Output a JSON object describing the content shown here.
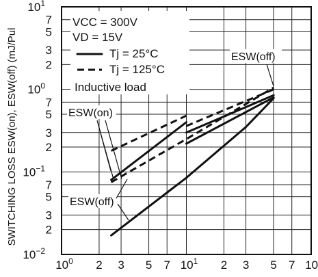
{
  "chart_data": {
    "type": "line",
    "ylabel": "SWITCHING LOSS  ESW(on), ESW(off)  (mJ/Pul",
    "xscale": "log",
    "yscale": "log",
    "xlim": [
      1,
      100
    ],
    "ylim": [
      0.01,
      10
    ],
    "grid": true,
    "x_tick_labels": [
      {
        "v": 1,
        "m": "10",
        "e": "0"
      },
      {
        "v": 2,
        "m": "2",
        "e": ""
      },
      {
        "v": 3,
        "m": "3",
        "e": ""
      },
      {
        "v": 5,
        "m": "5",
        "e": ""
      },
      {
        "v": 7,
        "m": "7",
        "e": ""
      },
      {
        "v": 10,
        "m": "10",
        "e": "1"
      },
      {
        "v": 20,
        "m": "2",
        "e": ""
      },
      {
        "v": 30,
        "m": "3",
        "e": ""
      },
      {
        "v": 50,
        "m": "5",
        "e": ""
      },
      {
        "v": 70,
        "m": "7",
        "e": ""
      },
      {
        "v": 100,
        "m": "10",
        "e": "2"
      }
    ],
    "y_tick_labels": [
      {
        "v": 0.01,
        "m": "10",
        "e": "−2"
      },
      {
        "v": 0.02,
        "m": "2",
        "e": ""
      },
      {
        "v": 0.03,
        "m": "3",
        "e": ""
      },
      {
        "v": 0.05,
        "m": "5",
        "e": ""
      },
      {
        "v": 0.07,
        "m": "7",
        "e": ""
      },
      {
        "v": 0.1,
        "m": "10",
        "e": "−1"
      },
      {
        "v": 0.2,
        "m": "2",
        "e": ""
      },
      {
        "v": 0.3,
        "m": "3",
        "e": ""
      },
      {
        "v": 0.5,
        "m": "5",
        "e": ""
      },
      {
        "v": 0.7,
        "m": "7",
        "e": ""
      },
      {
        "v": 1,
        "m": "10",
        "e": "0"
      },
      {
        "v": 2,
        "m": "2",
        "e": ""
      },
      {
        "v": 3,
        "m": "3",
        "e": ""
      },
      {
        "v": 5,
        "m": "5",
        "e": ""
      },
      {
        "v": 7,
        "m": "7",
        "e": ""
      },
      {
        "v": 10,
        "m": "10",
        "e": "1"
      }
    ],
    "legend": {
      "conditions": [
        "VCC = 300V",
        "VD = 15V"
      ],
      "entries": [
        {
          "style": "solid",
          "label": "Tj = 25°C"
        },
        {
          "style": "dashed",
          "label": "Tj = 125°C"
        }
      ],
      "note": "Inductive load"
    },
    "annotations": {
      "esw_on": "ESW(on)",
      "esw_off_left": "ESW(off)",
      "esw_off_right": "ESW(off)"
    },
    "series": [
      {
        "name": "ESW(on) Tj=125°C",
        "style": "dashed",
        "points": [
          [
            2.5,
            0.18
          ],
          [
            10,
            0.48
          ]
        ]
      },
      {
        "name": "ESW(on) Tj=25°C",
        "style": "solid",
        "points": [
          [
            2.5,
            0.08
          ],
          [
            10,
            0.4
          ]
        ]
      },
      {
        "name": "ESW(on) Tj=125°C, IC≥10A",
        "style": "dashed",
        "points": [
          [
            10,
            0.36
          ],
          [
            50,
            1.0
          ]
        ]
      },
      {
        "name": "ESW(on) Tj=25°C, IC≥10A",
        "style": "solid",
        "points": [
          [
            10,
            0.3
          ],
          [
            50,
            0.85
          ]
        ]
      },
      {
        "name": "ESW(off) Tj=125°C",
        "style": "dashed",
        "points": [
          [
            2.5,
            0.075
          ],
          [
            10,
            0.25
          ],
          [
            50,
            1.05
          ]
        ]
      },
      {
        "name": "ESW(off) Tj=25°C (upper)",
        "style": "solid",
        "points": [
          [
            10,
            0.22
          ],
          [
            50,
            0.8
          ]
        ]
      },
      {
        "name": "ESW(off) Tj=25°C",
        "style": "solid",
        "points": [
          [
            2.5,
            0.017
          ],
          [
            10,
            0.085
          ],
          [
            30,
            0.35
          ],
          [
            50,
            0.78
          ]
        ]
      }
    ]
  }
}
